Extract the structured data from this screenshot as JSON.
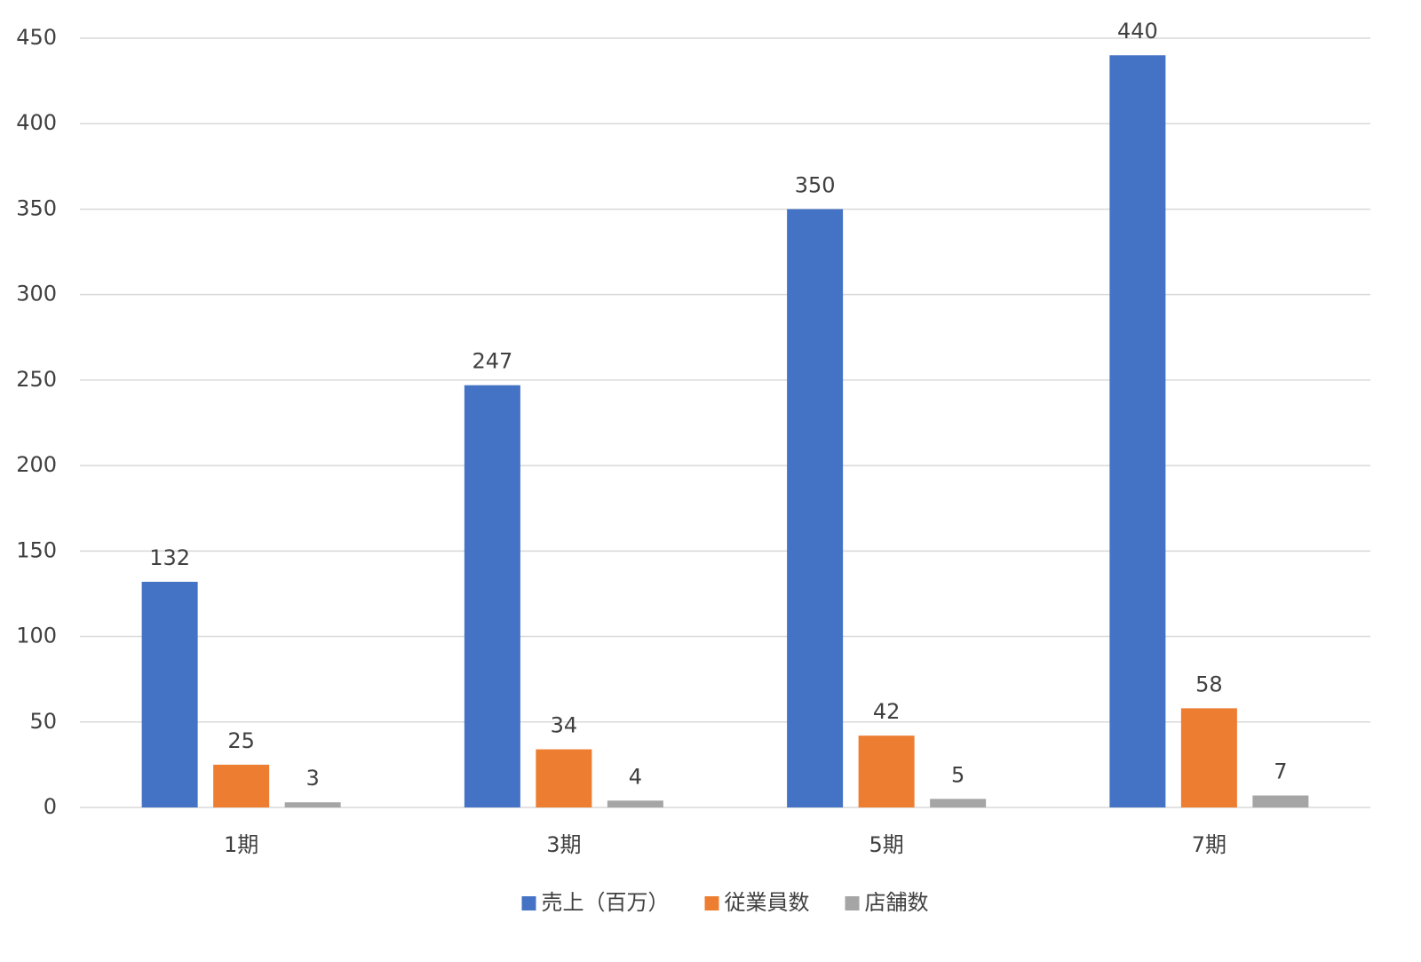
{
  "chart_data": {
    "type": "bar",
    "categories": [
      "1期",
      "3期",
      "5期",
      "7期"
    ],
    "series": [
      {
        "name": "売上（百万）",
        "color": "#4472c4",
        "values": [
          132,
          247,
          350,
          440
        ]
      },
      {
        "name": "従業員数",
        "color": "#ed7d31",
        "values": [
          25,
          34,
          42,
          58
        ]
      },
      {
        "name": "店舗数",
        "color": "#a5a5a5",
        "values": [
          3,
          4,
          5,
          7
        ]
      }
    ],
    "ylim": [
      0,
      450
    ],
    "yticks": [
      0,
      50,
      100,
      150,
      200,
      250,
      300,
      350,
      400,
      450
    ],
    "grid": true,
    "data_labels": true,
    "legend": "bottom"
  }
}
